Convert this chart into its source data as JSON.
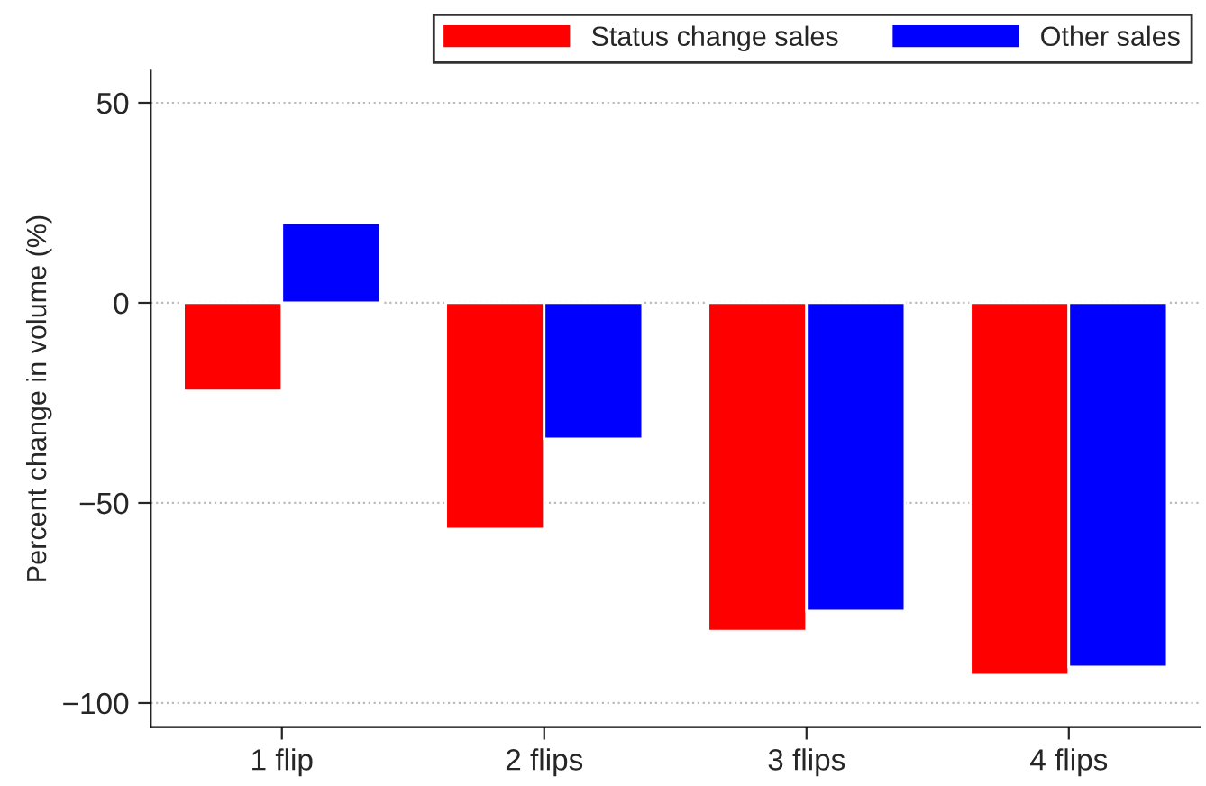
{
  "chart_data": {
    "type": "bar",
    "ylabel": "Percent change in volume (%)",
    "categories": [
      "1 flip",
      "2 flips",
      "3 flips",
      "4 flips"
    ],
    "series": [
      {
        "name": "Status change sales",
        "color": "#ff0000",
        "values": [
          -22,
          -56.5,
          -82,
          -93
        ]
      },
      {
        "name": "Other sales",
        "color": "#0000ff",
        "values": [
          20,
          -34,
          -77,
          -91
        ]
      }
    ],
    "ylim": [
      -106,
      58
    ],
    "yticks": [
      {
        "value": -100,
        "label": "−100"
      },
      {
        "value": -50,
        "label": "−50"
      },
      0,
      50
    ],
    "grid": "y",
    "legend": "top right"
  }
}
